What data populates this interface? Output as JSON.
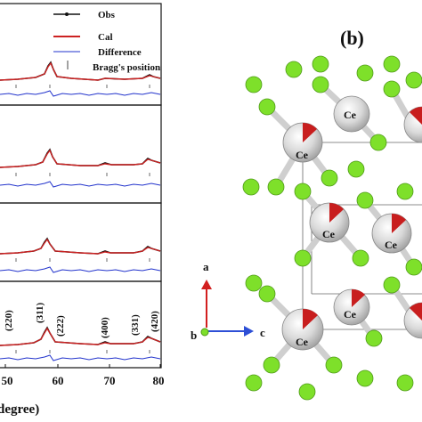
{
  "panel_a": {
    "legend": [
      {
        "label": "Obs",
        "color": "#111111"
      },
      {
        "label": "Cal",
        "color": "#cc2222"
      },
      {
        "label": "Difference",
        "color": "#2233cc"
      },
      {
        "label": "Bragg's position",
        "color": "#444444"
      }
    ],
    "x_ticks": [
      "50",
      "60",
      "70",
      "80"
    ],
    "x_label": "(degree)",
    "peak_labels": [
      "(220)",
      "(311)",
      "(222)",
      "(400)",
      "(331)",
      "(420)"
    ]
  },
  "panel_b": {
    "label": "(b)",
    "atom_label": "Ce",
    "axis_a": "a",
    "axis_b": "b",
    "axis_c": "c"
  },
  "colors": {
    "ce_atom": "#d9d9d9",
    "f_atom": "#7ee02a",
    "bond": "#cfcfcf",
    "cal_line": "#cc2222",
    "diff_line": "#2233cc"
  }
}
